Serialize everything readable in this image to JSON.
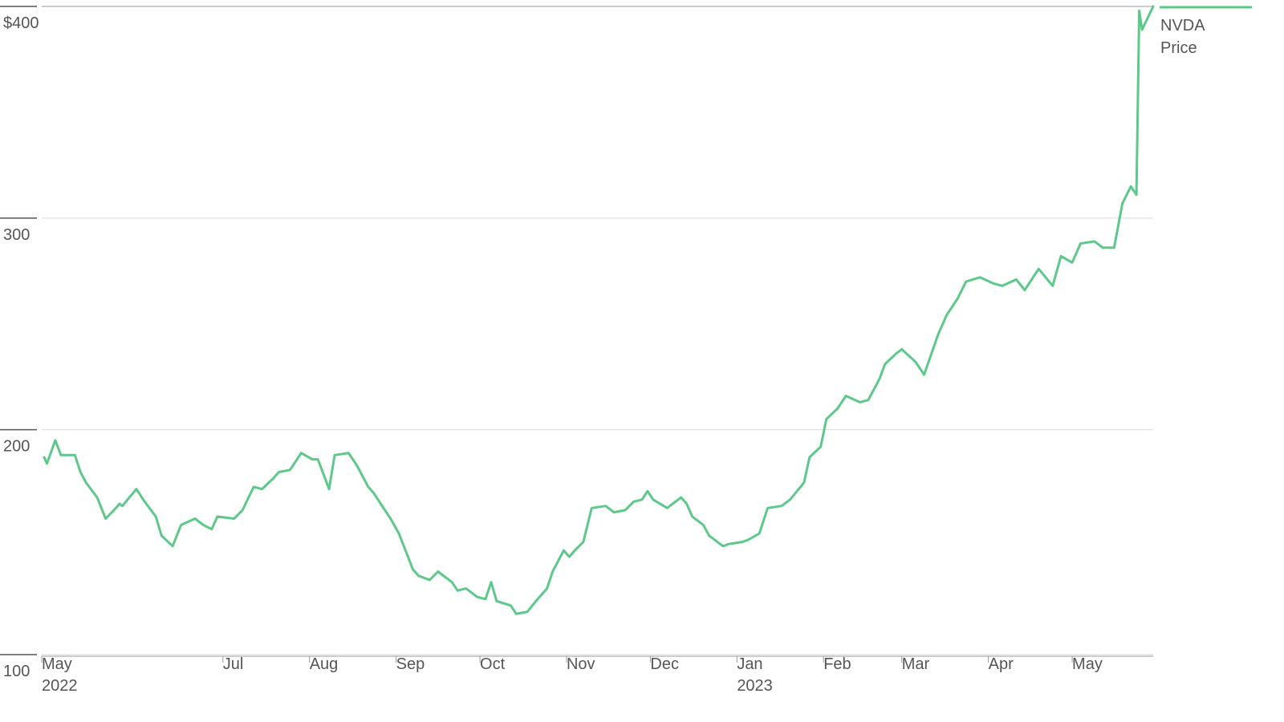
{
  "chart_data": {
    "type": "line",
    "title": "",
    "xlabel": "",
    "ylabel": "",
    "ylim": [
      93,
      400
    ],
    "grid": true,
    "legend_position": "top-right",
    "y_ticks": [
      {
        "value": 400,
        "label": "$400"
      },
      {
        "value": 300,
        "label": "300"
      },
      {
        "value": 200,
        "label": "200"
      },
      {
        "value": 100,
        "label": "100"
      }
    ],
    "x_ticks": [
      {
        "date": "2022-04-28",
        "label": "May",
        "year_label": "2022"
      },
      {
        "date": "2022-07-01",
        "label": "Jul",
        "year_label": ""
      },
      {
        "date": "2022-08-01",
        "label": "Aug",
        "year_label": ""
      },
      {
        "date": "2022-09-01",
        "label": "Sep",
        "year_label": ""
      },
      {
        "date": "2022-10-01",
        "label": "Oct",
        "year_label": ""
      },
      {
        "date": "2022-11-01",
        "label": "Nov",
        "year_label": ""
      },
      {
        "date": "2022-12-01",
        "label": "Dec",
        "year_label": ""
      },
      {
        "date": "2023-01-01",
        "label": "Jan",
        "year_label": "2023"
      },
      {
        "date": "2023-02-01",
        "label": "Feb",
        "year_label": ""
      },
      {
        "date": "2023-03-01",
        "label": "Mar",
        "year_label": ""
      },
      {
        "date": "2023-04-01",
        "label": "Apr",
        "year_label": ""
      },
      {
        "date": "2023-05-01",
        "label": "May",
        "year_label": ""
      }
    ],
    "series": [
      {
        "name": "NVDA Price",
        "legend_lines": [
          "NVDA",
          "Price"
        ],
        "color": "#5cc98a",
        "x": [
          "2022-04-28",
          "2022-04-29",
          "2022-05-02",
          "2022-05-04",
          "2022-05-09",
          "2022-05-11",
          "2022-05-13",
          "2022-05-17",
          "2022-05-20",
          "2022-05-23",
          "2022-05-25",
          "2022-05-26",
          "2022-05-31",
          "2022-06-03",
          "2022-06-07",
          "2022-06-09",
          "2022-06-13",
          "2022-06-16",
          "2022-06-21",
          "2022-06-24",
          "2022-06-27",
          "2022-06-29",
          "2022-07-05",
          "2022-07-08",
          "2022-07-12",
          "2022-07-15",
          "2022-07-19",
          "2022-07-21",
          "2022-07-25",
          "2022-07-27",
          "2022-07-29",
          "2022-08-02",
          "2022-08-04",
          "2022-08-08",
          "2022-08-10",
          "2022-08-15",
          "2022-08-18",
          "2022-08-22",
          "2022-08-24",
          "2022-08-26",
          "2022-08-30",
          "2022-09-02",
          "2022-09-07",
          "2022-09-09",
          "2022-09-13",
          "2022-09-16",
          "2022-09-21",
          "2022-09-23",
          "2022-09-26",
          "2022-09-30",
          "2022-10-03",
          "2022-10-05",
          "2022-10-07",
          "2022-10-12",
          "2022-10-14",
          "2022-10-18",
          "2022-10-21",
          "2022-10-25",
          "2022-10-27",
          "2022-10-31",
          "2022-11-02",
          "2022-11-04",
          "2022-11-07",
          "2022-11-10",
          "2022-11-15",
          "2022-11-18",
          "2022-11-22",
          "2022-11-25",
          "2022-11-28",
          "2022-11-30",
          "2022-12-02",
          "2022-12-07",
          "2022-12-12",
          "2022-12-14",
          "2022-12-16",
          "2022-12-20",
          "2022-12-22",
          "2022-12-27",
          "2022-12-29",
          "2023-01-03",
          "2023-01-05",
          "2023-01-09",
          "2023-01-12",
          "2023-01-17",
          "2023-01-20",
          "2023-01-25",
          "2023-01-27",
          "2023-01-31",
          "2023-02-02",
          "2023-02-06",
          "2023-02-09",
          "2023-02-14",
          "2023-02-17",
          "2023-02-21",
          "2023-02-23",
          "2023-02-27",
          "2023-03-01",
          "2023-03-06",
          "2023-03-09",
          "2023-03-14",
          "2023-03-17",
          "2023-03-21",
          "2023-03-24",
          "2023-03-29",
          "2023-04-03",
          "2023-04-06",
          "2023-04-11",
          "2023-04-14",
          "2023-04-19",
          "2023-04-24",
          "2023-04-27",
          "2023-05-01",
          "2023-05-04",
          "2023-05-09",
          "2023-05-12",
          "2023-05-16",
          "2023-05-19",
          "2023-05-22",
          "2023-05-24",
          "2023-05-25",
          "2023-05-26",
          "2023-05-30"
        ],
        "values": [
          187,
          184,
          195,
          188,
          188,
          180,
          175,
          168,
          158,
          162,
          165,
          164,
          172,
          166,
          159,
          150,
          145,
          155,
          158,
          155,
          153,
          159,
          158,
          162,
          173,
          172,
          177,
          180,
          181,
          185,
          189,
          186,
          186,
          172,
          188,
          189,
          183,
          173,
          170,
          166,
          158,
          151,
          134,
          131,
          129,
          133,
          128,
          124,
          125,
          121,
          120,
          128,
          119,
          117,
          113,
          114,
          119,
          125,
          133,
          143,
          140,
          143,
          147,
          163,
          164,
          161,
          162,
          166,
          167,
          171,
          167,
          163,
          168,
          165,
          159,
          155,
          150,
          145,
          146,
          147,
          148,
          151,
          163,
          164,
          167,
          175,
          187,
          192,
          205,
          210,
          216,
          213,
          214,
          224,
          231,
          236,
          238,
          232,
          226,
          245,
          254,
          262,
          270,
          272,
          269,
          268,
          271,
          266,
          276,
          268,
          282,
          279,
          288,
          289,
          286,
          286,
          307,
          315,
          311,
          398,
          389,
          400
        ]
      }
    ]
  }
}
